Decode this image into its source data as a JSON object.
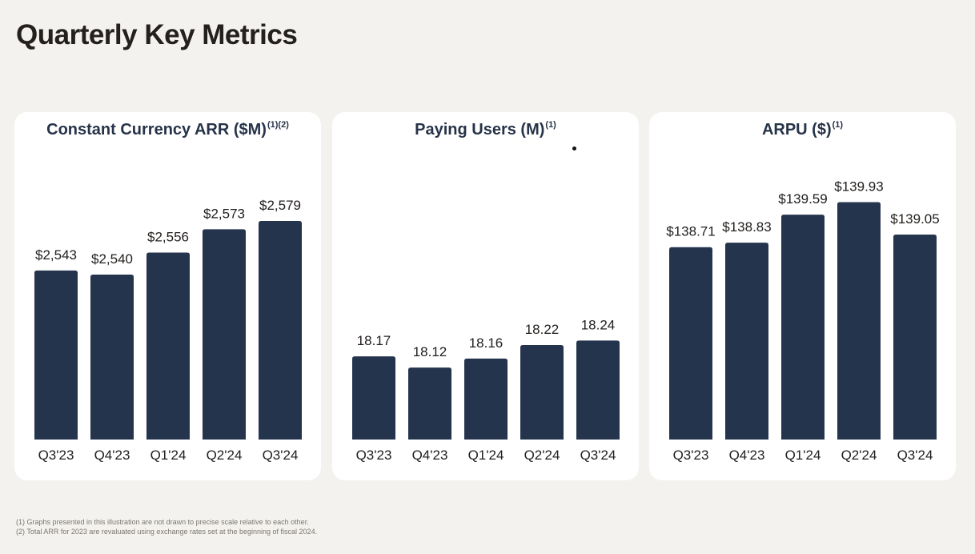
{
  "page": {
    "title": "Quarterly Key Metrics",
    "footnotes": [
      "(1) Graphs presented in this illustration are not drawn to precise scale relative to each other.",
      "(2) Total ARR for 2023 are revaluated using exchange rates set at the beginning of fiscal 2024."
    ]
  },
  "colors": {
    "bar": "#25344d",
    "title": "#273349",
    "background": "#f4f2ee",
    "card": "#ffffff"
  },
  "chart_data": [
    {
      "type": "bar",
      "title": "Constant Currency ARR ($M)",
      "title_note": "(1)(2)",
      "categories": [
        "Q3'23",
        "Q4'23",
        "Q1'24",
        "Q2'24",
        "Q3'24"
      ],
      "values": [
        2543,
        2540,
        2556,
        2573,
        2579
      ],
      "value_labels": [
        "$2,543",
        "$2,540",
        "$2,556",
        "$2,573",
        "$2,579"
      ],
      "ylim": [
        2420,
        2600
      ],
      "grid": false
    },
    {
      "type": "bar",
      "title": "Paying Users (M)",
      "title_note": "(1)",
      "categories": [
        "Q3'23",
        "Q4'23",
        "Q1'24",
        "Q2'24",
        "Q3'24"
      ],
      "values": [
        18.17,
        18.12,
        18.16,
        18.22,
        18.24
      ],
      "value_labels": [
        "18.17",
        "18.12",
        "18.16",
        "18.22",
        "18.24"
      ],
      "ylim": [
        17.8,
        18.9
      ],
      "grid": false
    },
    {
      "type": "bar",
      "title": "ARPU ($)",
      "title_note": "(1)",
      "categories": [
        "Q3'23",
        "Q4'23",
        "Q1'24",
        "Q2'24",
        "Q3'24"
      ],
      "values": [
        138.71,
        138.83,
        139.59,
        139.93,
        139.05
      ],
      "value_labels": [
        "$138.71",
        "$138.83",
        "$139.59",
        "$139.93",
        "$139.05"
      ],
      "ylim": [
        133.5,
        140.2
      ],
      "grid": false
    }
  ]
}
